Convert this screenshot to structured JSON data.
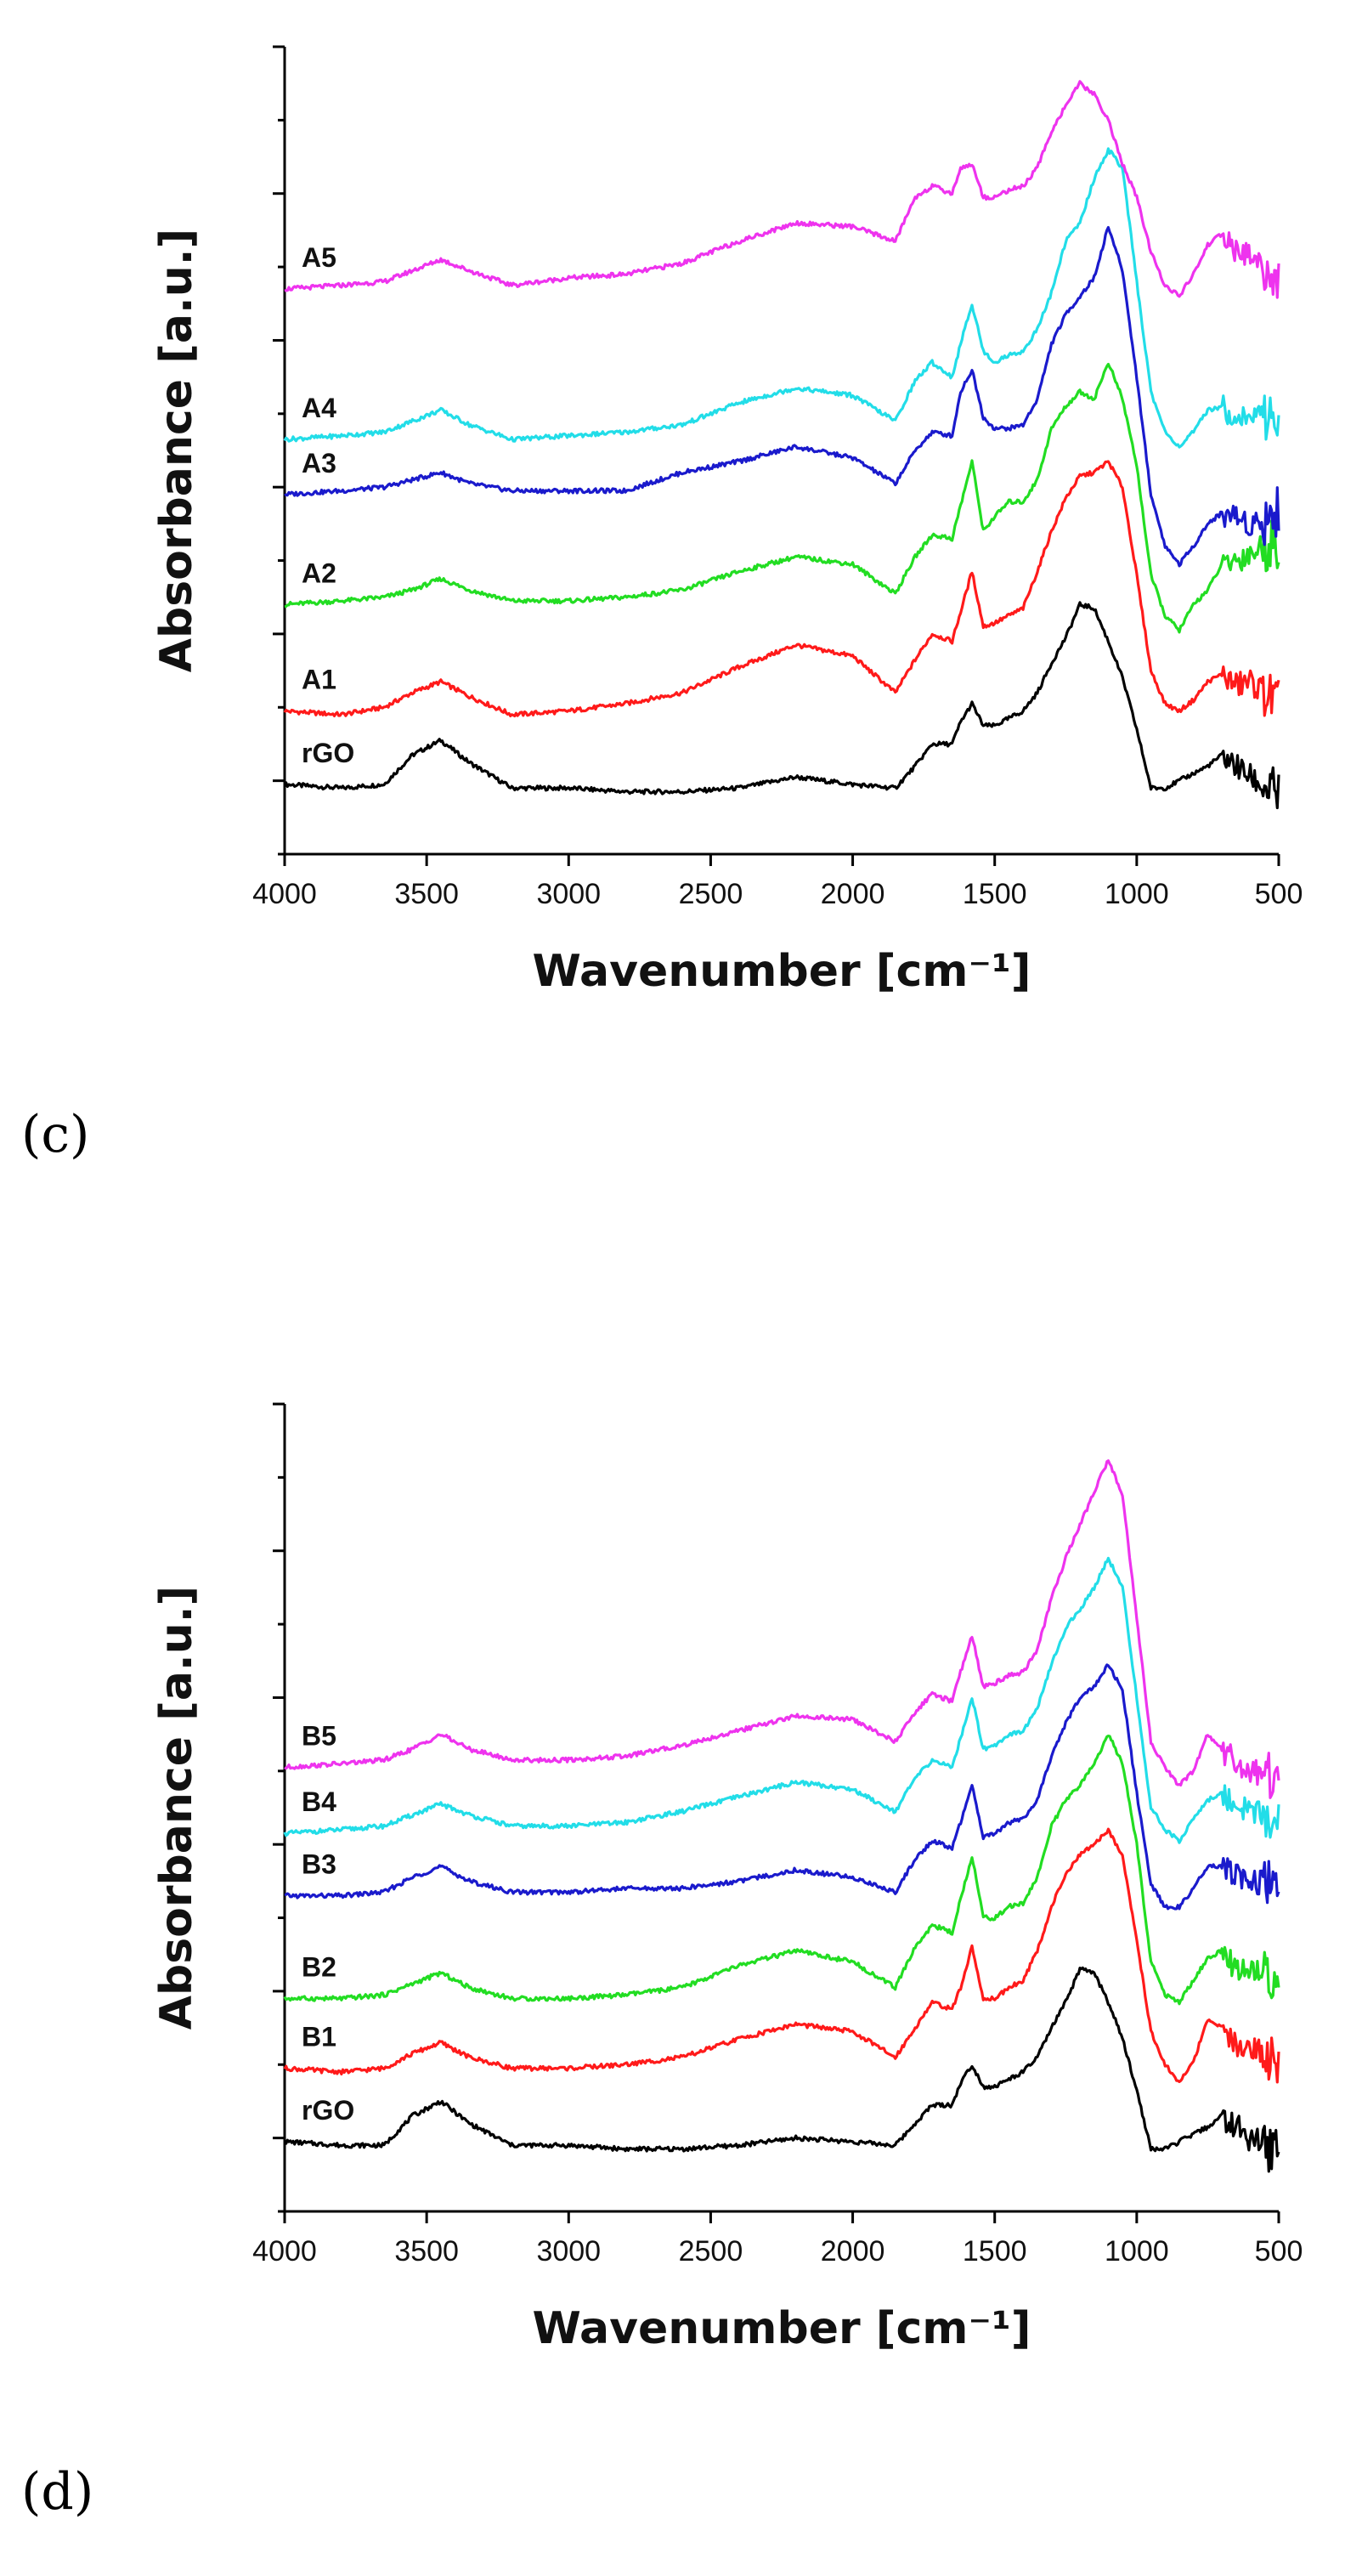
{
  "chart_data": [
    {
      "panel": "(c)",
      "type": "line",
      "title": "",
      "xlabel": "Wavenumber [cm⁻¹]",
      "ylabel": "Absorbance [a.u.]",
      "xlim": [
        4000,
        500
      ],
      "x_reversed": true,
      "ylim": [
        0,
        11
      ],
      "y_ticks_labeled": false,
      "xticks": [
        4000,
        3500,
        3000,
        2500,
        2000,
        1500,
        1000,
        500
      ],
      "x": [
        4000,
        3800,
        3650,
        3550,
        3450,
        3350,
        3200,
        3000,
        2800,
        2600,
        2400,
        2200,
        2000,
        1850,
        1780,
        1720,
        1650,
        1620,
        1580,
        1540,
        1500,
        1450,
        1400,
        1350,
        1300,
        1250,
        1200,
        1150,
        1100,
        1050,
        1000,
        950,
        900,
        850,
        800,
        750,
        700,
        650,
        600,
        550,
        500
      ],
      "series": [
        {
          "name": "rGO",
          "color": "#000000",
          "values": [
            0.95,
            0.9,
            0.95,
            1.35,
            1.55,
            1.25,
            0.9,
            0.9,
            0.85,
            0.85,
            0.9,
            1.05,
            0.95,
            0.9,
            1.2,
            1.5,
            1.5,
            1.8,
            2.05,
            1.75,
            1.75,
            1.85,
            1.95,
            2.2,
            2.6,
            2.95,
            3.4,
            3.35,
            2.9,
            2.4,
            1.7,
            0.9,
            0.9,
            1.0,
            1.1,
            1.2,
            1.35,
            1.2,
            1.05,
            0.9,
            0.8
          ]
        },
        {
          "name": "A1",
          "color": "#ff1a1a",
          "values": [
            1.95,
            1.9,
            2.0,
            2.2,
            2.35,
            2.15,
            1.9,
            1.95,
            2.05,
            2.2,
            2.55,
            2.85,
            2.7,
            2.2,
            2.65,
            3.0,
            2.9,
            3.3,
            3.85,
            3.1,
            3.15,
            3.25,
            3.35,
            3.85,
            4.4,
            4.85,
            5.15,
            5.2,
            5.35,
            5.0,
            3.8,
            2.5,
            2.05,
            1.95,
            2.1,
            2.35,
            2.45,
            2.3,
            2.35,
            2.2,
            2.05
          ]
        },
        {
          "name": "A2",
          "color": "#22dd22",
          "values": [
            3.4,
            3.45,
            3.5,
            3.6,
            3.75,
            3.6,
            3.45,
            3.45,
            3.5,
            3.6,
            3.85,
            4.05,
            3.95,
            3.55,
            4.05,
            4.35,
            4.3,
            4.75,
            5.35,
            4.4,
            4.6,
            4.8,
            4.8,
            5.1,
            5.8,
            6.1,
            6.3,
            6.2,
            6.7,
            6.2,
            5.3,
            3.8,
            3.25,
            3.05,
            3.4,
            3.6,
            3.95,
            4.0,
            4.1,
            4.2,
            4.25
          ]
        },
        {
          "name": "A3",
          "color": "#1a1acc",
          "values": [
            4.9,
            4.95,
            5.0,
            5.1,
            5.2,
            5.05,
            4.95,
            4.95,
            4.95,
            5.2,
            5.35,
            5.55,
            5.4,
            5.05,
            5.5,
            5.75,
            5.7,
            6.3,
            6.6,
            5.95,
            5.8,
            5.8,
            5.85,
            6.2,
            6.95,
            7.35,
            7.6,
            7.85,
            8.55,
            7.95,
            6.5,
            4.9,
            4.2,
            3.95,
            4.2,
            4.5,
            4.65,
            4.6,
            4.5,
            4.55,
            4.7
          ]
        },
        {
          "name": "A4",
          "color": "#22dde8",
          "values": [
            5.65,
            5.7,
            5.75,
            5.9,
            6.05,
            5.85,
            5.65,
            5.7,
            5.75,
            5.85,
            6.15,
            6.35,
            6.25,
            5.9,
            6.45,
            6.7,
            6.5,
            6.95,
            7.5,
            6.85,
            6.7,
            6.8,
            6.85,
            7.15,
            7.65,
            8.35,
            8.6,
            9.2,
            9.6,
            9.35,
            7.8,
            6.3,
            5.75,
            5.55,
            5.75,
            6.05,
            6.1,
            5.95,
            5.95,
            6.0,
            5.9
          ]
        },
        {
          "name": "A5",
          "color": "#ee33ee",
          "values": [
            7.7,
            7.75,
            7.8,
            7.95,
            8.1,
            7.95,
            7.75,
            7.85,
            7.9,
            8.05,
            8.35,
            8.6,
            8.55,
            8.35,
            8.95,
            9.1,
            9.0,
            9.35,
            9.4,
            8.95,
            8.95,
            9.05,
            9.1,
            9.35,
            9.85,
            10.2,
            10.5,
            10.35,
            10.0,
            9.4,
            8.95,
            8.2,
            7.75,
            7.6,
            7.9,
            8.3,
            8.45,
            8.2,
            8.15,
            8.0,
            7.75
          ]
        }
      ]
    },
    {
      "panel": "(d)",
      "type": "line",
      "title": "",
      "xlabel": "Wavenumber [cm⁻¹]",
      "ylabel": "Absorbance [a.u.]",
      "xlim": [
        4000,
        500
      ],
      "x_reversed": true,
      "ylim": [
        0,
        11
      ],
      "y_ticks_labeled": false,
      "xticks": [
        4000,
        3500,
        3000,
        2500,
        2000,
        1500,
        1000,
        500
      ],
      "x": [
        4000,
        3800,
        3650,
        3550,
        3450,
        3350,
        3200,
        3000,
        2800,
        2600,
        2400,
        2200,
        2000,
        1850,
        1780,
        1720,
        1650,
        1620,
        1580,
        1540,
        1500,
        1450,
        1400,
        1350,
        1300,
        1250,
        1200,
        1150,
        1100,
        1050,
        1000,
        950,
        900,
        850,
        800,
        750,
        700,
        650,
        600,
        550,
        500
      ],
      "series": [
        {
          "name": "rGO",
          "color": "#000000",
          "values": [
            0.95,
            0.9,
            0.9,
            1.3,
            1.5,
            1.2,
            0.9,
            0.9,
            0.85,
            0.85,
            0.9,
            1.0,
            0.95,
            0.9,
            1.2,
            1.45,
            1.45,
            1.75,
            2.0,
            1.7,
            1.7,
            1.8,
            1.9,
            2.1,
            2.5,
            2.85,
            3.3,
            3.25,
            2.85,
            2.35,
            1.65,
            0.85,
            0.85,
            0.95,
            1.05,
            1.15,
            1.3,
            1.15,
            1.0,
            0.9,
            0.8
          ]
        },
        {
          "name": "B1",
          "color": "#ff1a1a",
          "values": [
            1.95,
            1.9,
            1.95,
            2.15,
            2.3,
            2.1,
            1.95,
            1.95,
            2.0,
            2.1,
            2.35,
            2.55,
            2.45,
            2.1,
            2.5,
            2.85,
            2.75,
            3.05,
            3.6,
            2.9,
            2.9,
            3.05,
            3.15,
            3.55,
            4.15,
            4.6,
            4.85,
            5.0,
            5.2,
            4.85,
            3.7,
            2.45,
            2.0,
            1.75,
            2.05,
            2.6,
            2.5,
            2.3,
            2.25,
            2.15,
            2.0
          ]
        },
        {
          "name": "B2",
          "color": "#22dd22",
          "values": [
            2.9,
            2.9,
            2.95,
            3.1,
            3.25,
            3.05,
            2.9,
            2.9,
            2.95,
            3.05,
            3.35,
            3.55,
            3.4,
            3.05,
            3.6,
            3.9,
            3.8,
            4.25,
            4.85,
            4.0,
            4.0,
            4.15,
            4.2,
            4.55,
            5.25,
            5.6,
            5.8,
            6.1,
            6.5,
            6.1,
            5.0,
            3.4,
            2.95,
            2.85,
            3.15,
            3.45,
            3.55,
            3.3,
            3.3,
            3.25,
            3.2
          ]
        },
        {
          "name": "B3",
          "color": "#1a1acc",
          "values": [
            4.3,
            4.3,
            4.35,
            4.55,
            4.7,
            4.5,
            4.35,
            4.35,
            4.4,
            4.4,
            4.5,
            4.65,
            4.55,
            4.35,
            4.8,
            5.05,
            4.95,
            5.3,
            5.8,
            5.1,
            5.15,
            5.3,
            5.35,
            5.6,
            6.2,
            6.65,
            7.0,
            7.15,
            7.45,
            7.1,
            5.7,
            4.45,
            4.15,
            4.15,
            4.4,
            4.7,
            4.7,
            4.55,
            4.5,
            4.45,
            4.4
          ]
        },
        {
          "name": "B4",
          "color": "#22dde8",
          "values": [
            5.15,
            5.2,
            5.25,
            5.4,
            5.55,
            5.4,
            5.25,
            5.25,
            5.3,
            5.45,
            5.65,
            5.85,
            5.75,
            5.45,
            5.9,
            6.15,
            6.05,
            6.45,
            7.0,
            6.3,
            6.35,
            6.5,
            6.55,
            6.85,
            7.45,
            7.95,
            8.2,
            8.5,
            8.9,
            8.5,
            7.0,
            5.5,
            5.2,
            5.05,
            5.35,
            5.6,
            5.7,
            5.55,
            5.45,
            5.4,
            5.3
          ]
        },
        {
          "name": "B5",
          "color": "#ee33ee",
          "values": [
            6.05,
            6.1,
            6.15,
            6.3,
            6.5,
            6.3,
            6.15,
            6.15,
            6.2,
            6.35,
            6.55,
            6.75,
            6.7,
            6.4,
            6.8,
            7.05,
            6.95,
            7.35,
            7.85,
            7.15,
            7.2,
            7.3,
            7.35,
            7.65,
            8.35,
            8.9,
            9.35,
            9.8,
            10.25,
            9.75,
            8.1,
            6.4,
            6.05,
            5.8,
            6.0,
            6.5,
            6.3,
            6.1,
            6.0,
            5.95,
            5.9
          ]
        }
      ]
    }
  ]
}
